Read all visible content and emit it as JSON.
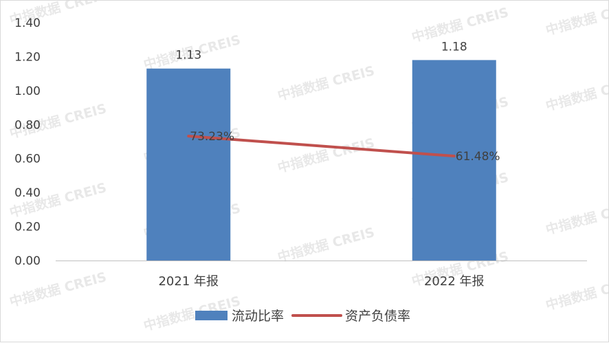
{
  "watermark": "中指数据 CREIS",
  "chart_data": {
    "type": "bar",
    "categories": [
      "2021 年报",
      "2022 年报"
    ],
    "series": [
      {
        "name": "流动比率",
        "kind": "bar",
        "values": [
          1.13,
          1.18
        ],
        "value_labels": [
          "1.13",
          "1.18"
        ],
        "color": "#4f81bd"
      },
      {
        "name": "资产负债率",
        "kind": "line",
        "values": [
          73.23,
          61.48
        ],
        "value_labels": [
          "73.23%",
          "61.48%"
        ],
        "unit": "%",
        "color": "#c0504d"
      }
    ],
    "ylim": [
      0,
      1.4
    ],
    "yticks": [
      "0.00",
      "0.20",
      "0.40",
      "0.60",
      "0.80",
      "1.00",
      "1.20",
      "1.40"
    ],
    "grid": false,
    "legend_position": "bottom"
  }
}
